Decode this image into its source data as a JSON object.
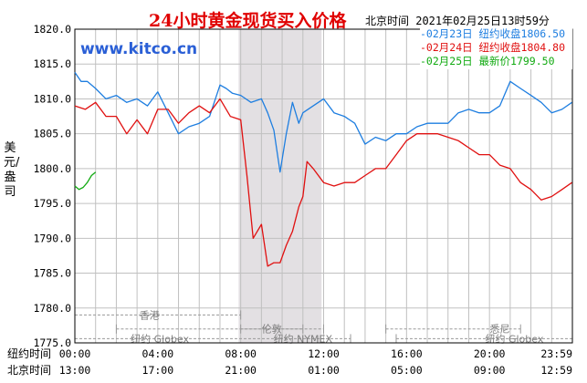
{
  "header": {
    "title": "24小时黄金现货买入价格",
    "datetime": "北京时间   2021年02月25日13时59分",
    "site": "www.kitco.cn"
  },
  "legend": [
    {
      "text": "-02月23日 纽约收盘1806.50",
      "color": "#1e7ee0"
    },
    {
      "text": "-02月24日 纽约收盘1804.80",
      "color": "#e01010"
    },
    {
      "text": "-02月25日    最新价1799.50",
      "color": "#11aa11"
    }
  ],
  "y_axis_label": "美元/盎司",
  "row_labels": {
    "ny": "纽约时间",
    "bj": "北京时间"
  },
  "markets": [
    {
      "name": "香港"
    },
    {
      "name": "伦敦"
    },
    {
      "name": "纽约 NYMEX"
    },
    {
      "name": "纽约 Globex"
    },
    {
      "name": "悉尼"
    },
    {
      "name": "纽约 Globex"
    }
  ],
  "chart_data": {
    "type": "line",
    "ylim": [
      1775.0,
      1820.0
    ],
    "yticks": [
      "1820.0",
      "1815.0",
      "1810.0",
      "1805.0",
      "1800.0",
      "1795.0",
      "1790.0",
      "1785.0",
      "1780.0",
      "1775.0"
    ],
    "ny_time_ticks": [
      "00:00",
      "04:00",
      "08:00",
      "12:00",
      "16:00",
      "20:00",
      "23:59"
    ],
    "bj_time_ticks": [
      "13:00",
      "17:00",
      "21:00",
      "01:00",
      "05:00",
      "09:00",
      "12:59"
    ],
    "x_unit": "hours since 00:00 New York time",
    "highlight_hours": [
      7.9,
      11.9
    ],
    "series": [
      {
        "name": "02月23日",
        "color": "#1e7ee0",
        "x": [
          0,
          0.3,
          0.6,
          1,
          1.5,
          2,
          2.5,
          3,
          3.5,
          4,
          4.5,
          5,
          5.5,
          6,
          6.5,
          7,
          7.3,
          7.6,
          8,
          8.5,
          9,
          9.3,
          9.6,
          9.9,
          10.2,
          10.5,
          10.8,
          11,
          11.5,
          12,
          12.5,
          13,
          13.5,
          14,
          14.5,
          15,
          15.5,
          16,
          16.5,
          17,
          17.5,
          18,
          18.5,
          19,
          19.5,
          20,
          20.5,
          21,
          21.5,
          22,
          22.5,
          23,
          23.5,
          23.98
        ],
        "y": [
          1813.8,
          1812.5,
          1812.5,
          1811.5,
          1810,
          1810.5,
          1809.5,
          1810,
          1809,
          1811,
          1808,
          1805,
          1806,
          1806.5,
          1807.5,
          1812,
          1811.5,
          1810.8,
          1810.5,
          1809.5,
          1810,
          1808,
          1805.5,
          1799.5,
          1805,
          1809.5,
          1806.5,
          1808,
          1809,
          1810,
          1808,
          1807.5,
          1806.5,
          1803.5,
          1804.5,
          1804,
          1805,
          1805,
          1806,
          1806.5,
          1806.5,
          1806.5,
          1808,
          1808.5,
          1808,
          1808,
          1809,
          1812.5,
          1811.5,
          1810.5,
          1809.5,
          1808,
          1808.5,
          1809.5
        ]
      },
      {
        "name": "02月24日",
        "color": "#e01010",
        "x": [
          0,
          0.5,
          1,
          1.5,
          2,
          2.5,
          3,
          3.5,
          4,
          4.5,
          5,
          5.5,
          6,
          6.5,
          7,
          7.5,
          8,
          8.3,
          8.6,
          9,
          9.3,
          9.6,
          9.9,
          10.2,
          10.5,
          10.8,
          11,
          11.2,
          11.5,
          12,
          12.5,
          13,
          13.5,
          14,
          14.5,
          15,
          15.5,
          16,
          16.5,
          17,
          17.5,
          18,
          18.5,
          19,
          19.5,
          20,
          20.5,
          21,
          21.5,
          22,
          22.5,
          23,
          23.5,
          23.98
        ],
        "y": [
          1809,
          1808.5,
          1809.5,
          1807.5,
          1807.5,
          1805,
          1807,
          1805,
          1808.5,
          1808.5,
          1806.5,
          1808,
          1809,
          1808,
          1810,
          1807.5,
          1807,
          1799,
          1790,
          1792,
          1786,
          1786.5,
          1786.5,
          1789,
          1791,
          1794.5,
          1796,
          1801,
          1800,
          1798,
          1797.5,
          1798,
          1798,
          1799,
          1800,
          1800,
          1802,
          1804,
          1805,
          1805,
          1805,
          1804.5,
          1804,
          1803,
          1802,
          1802,
          1800.5,
          1800,
          1798,
          1797,
          1795.5,
          1796,
          1797,
          1798
        ]
      },
      {
        "name": "02月25日",
        "color": "#11aa11",
        "x": [
          0,
          0.2,
          0.4,
          0.6,
          0.8,
          1
        ],
        "y": [
          1797.5,
          1797,
          1797.3,
          1798,
          1799,
          1799.5
        ]
      }
    ]
  }
}
